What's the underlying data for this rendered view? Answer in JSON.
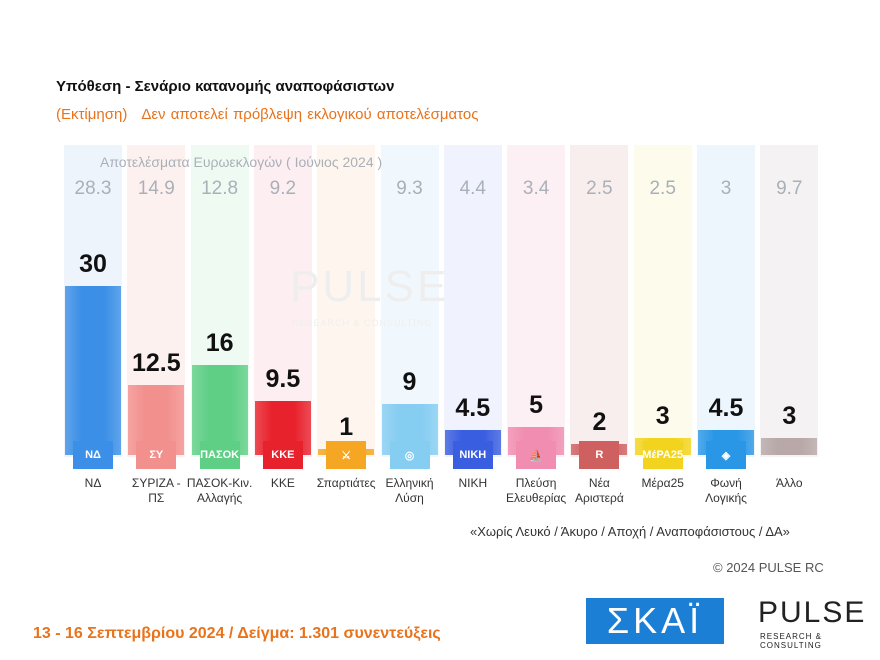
{
  "header": {
    "title": "Υπόθεση - Σενάριο κατανομής αναποφάσιστων",
    "subtitle_a": "(Εκτίμηση)",
    "subtitle_b": "Δεν αποτελεί πρόβλεψη εκλογικού αποτελέσματος"
  },
  "euro_label": "Αποτελέσματα Ευρωεκλογών  ( Ιούνιος 2024 )",
  "watermark": "PULSE",
  "watermark_sub": "RESEARCH & CONSULTING",
  "chart_data": {
    "type": "bar",
    "categories": [
      "ΝΔ",
      "ΣΥΡΙΖΑ - ΠΣ",
      "ΠΑΣΟΚ-Κιν. Αλλαγής",
      "ΚΚΕ",
      "Σπαρτιάτες",
      "Ελληνική Λύση",
      "ΝΙΚΗ",
      "Πλεύση Ελευθερίας",
      "Νέα Αριστερά",
      "Μέρα25",
      "Φωνή Λογικής",
      "Άλλο"
    ],
    "values": [
      30,
      12.5,
      16,
      9.5,
      1,
      9,
      4.5,
      5,
      2,
      3,
      4.5,
      3
    ],
    "value_labels": [
      "30",
      "12.5",
      "16",
      "9.5",
      "1",
      "9",
      "4.5",
      "5",
      "2",
      "3",
      "4.5",
      "3"
    ],
    "euro_results": [
      "28.3",
      "14.9",
      "12.8",
      "9.2",
      "",
      "9.3",
      "4.4",
      "3.4",
      "2.5",
      "2.5",
      "3",
      "9.7"
    ],
    "colors": [
      "#3b8fe6",
      "#f2908e",
      "#5fcf86",
      "#e8222c",
      "#f5a623",
      "#86cdf2",
      "#3a5ee0",
      "#f08db0",
      "#cf6060",
      "#f2d41e",
      "#2a96e6",
      "#b8a8a8"
    ],
    "bg_colors": [
      "#eef4fc",
      "#fdf1f0",
      "#effaf3",
      "#fdeef1",
      "#fef6ee",
      "#f1f8fd",
      "#f0f2fd",
      "#fdf0f5",
      "#f8eeee",
      "#fdfbec",
      "#eef6fd",
      "#f4f2f2"
    ],
    "logos": [
      "ΝΔ",
      "ΣΥ",
      "ΠΑΣΟΚ",
      "ΚΚΕ",
      "⚔",
      "◎",
      "ΝΙΚΗ",
      "⛵",
      "R",
      "ΜέΡΑ25",
      "◈",
      ""
    ],
    "ylim": [
      0,
      30
    ]
  },
  "note": "«Χωρίς Λευκό / Άκυρο / Αποχή / Αναποφάσιστους / ΔΑ»",
  "copyright": "© 2024 PULSE RC",
  "footer": "13 - 16 Σεπτεμβρίου 2024  /  Δείγμα:  1.301 συνεντεύξεις",
  "logo_skai": "ΣΚΑΪ",
  "logo_pulse": "PULSE",
  "logo_pulse_sub": "RESEARCH & CONSULTING"
}
